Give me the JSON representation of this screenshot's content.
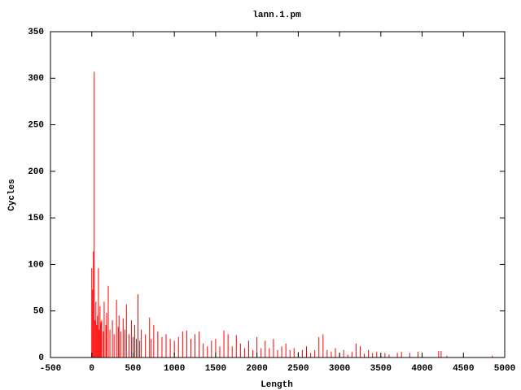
{
  "chart_data": {
    "type": "impulse",
    "title": "lann.1.pm",
    "x_label": "Length",
    "y_label": "Cycles",
    "color": "#ff0000",
    "x": [
      0,
      10,
      20,
      30,
      40,
      50,
      60,
      70,
      80,
      90,
      100,
      110,
      120,
      140,
      150,
      170,
      180,
      200,
      220,
      250,
      270,
      300,
      320,
      330,
      350,
      380,
      400,
      420,
      450,
      480,
      500,
      520,
      540,
      560,
      580,
      600,
      650,
      700,
      720,
      750,
      800,
      850,
      900,
      950,
      1000,
      1050,
      1100,
      1150,
      1200,
      1250,
      1300,
      1350,
      1400,
      1450,
      1500,
      1550,
      1600,
      1650,
      1700,
      1750,
      1800,
      1850,
      1900,
      1950,
      2000,
      2050,
      2100,
      2150,
      2200,
      2250,
      2300,
      2350,
      2400,
      2450,
      2500,
      2550,
      2600,
      2650,
      2700,
      2750,
      2800,
      2850,
      2900,
      2950,
      3000,
      3050,
      3100,
      3150,
      3200,
      3250,
      3300,
      3350,
      3400,
      3450,
      3500,
      3550,
      3600,
      3700,
      3750,
      3850,
      3950,
      4000,
      4200,
      4230,
      4300,
      4500,
      4850
    ],
    "values": [
      96,
      73,
      114,
      307,
      40,
      60,
      35,
      45,
      96,
      30,
      55,
      38,
      40,
      28,
      60,
      35,
      48,
      77,
      30,
      40,
      25,
      62,
      33,
      45,
      28,
      42,
      30,
      57,
      25,
      40,
      22,
      35,
      20,
      68,
      18,
      30,
      25,
      43,
      20,
      35,
      28,
      22,
      25,
      20,
      18,
      22,
      28,
      29,
      20,
      25,
      28,
      15,
      12,
      18,
      20,
      12,
      29,
      25,
      12,
      24,
      15,
      10,
      18,
      8,
      22,
      10,
      18,
      10,
      20,
      8,
      12,
      15,
      8,
      10,
      6,
      8,
      12,
      5,
      8,
      22,
      25,
      8,
      6,
      10,
      5,
      8,
      3,
      6,
      15,
      12,
      4,
      8,
      5,
      6,
      2,
      5,
      3,
      5,
      6,
      5,
      6,
      3,
      7,
      7,
      2,
      1,
      2
    ],
    "xlim": [
      -500,
      5000
    ],
    "xticks": [
      -500,
      0,
      500,
      1000,
      1500,
      2000,
      2500,
      3000,
      3500,
      4000,
      4500,
      5000
    ],
    "ylim": [
      0,
      350
    ],
    "yticks": [
      0,
      50,
      100,
      150,
      200,
      250,
      300,
      350
    ]
  }
}
